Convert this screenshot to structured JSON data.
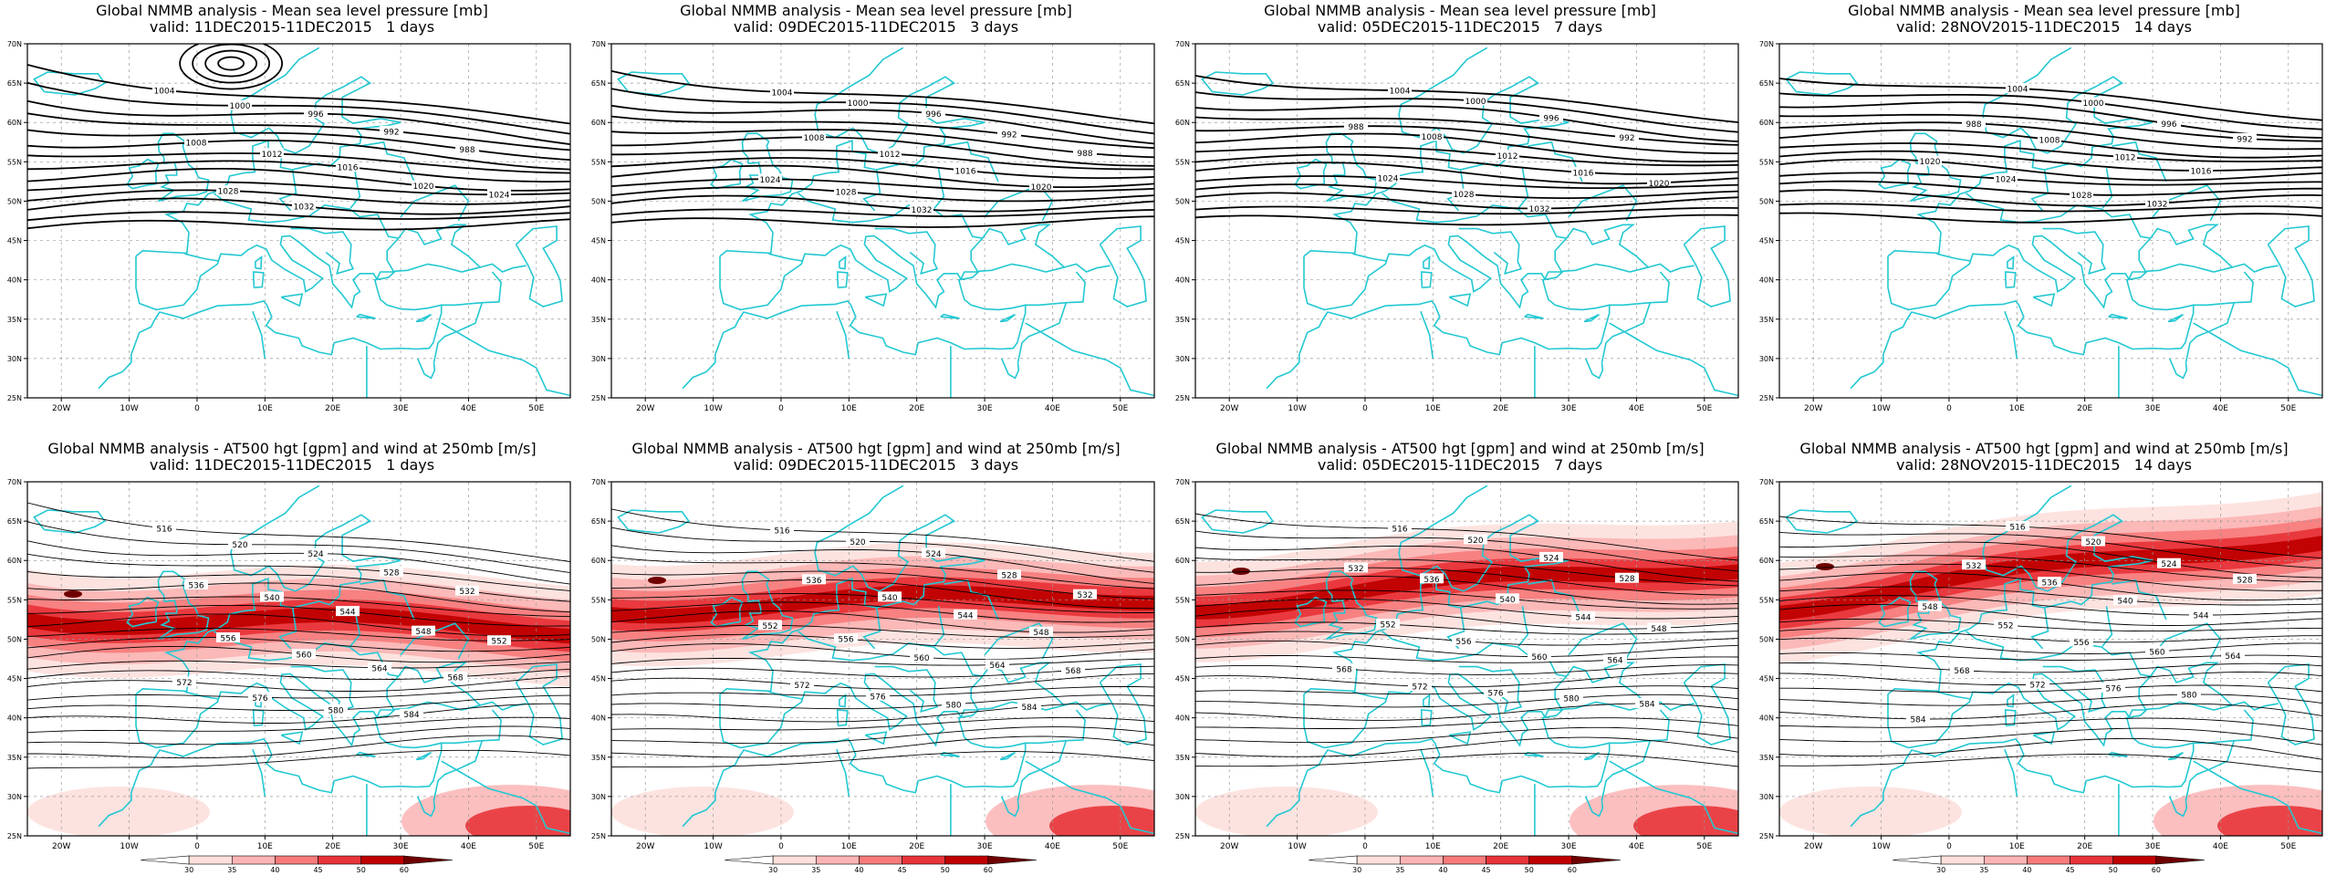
{
  "panels": [
    {
      "title": "Global NMMB analysis - Mean sea level pressure [mb]",
      "valid": "valid: 11DEC2015-11DEC2015   1 days",
      "type": "mslp",
      "variant": 0
    },
    {
      "title": "Global NMMB analysis - Mean sea level pressure [mb]",
      "valid": "valid: 09DEC2015-11DEC2015   3 days",
      "type": "mslp",
      "variant": 1
    },
    {
      "title": "Global NMMB analysis - Mean sea level pressure [mb]",
      "valid": "valid: 05DEC2015-11DEC2015   7 days",
      "type": "mslp",
      "variant": 2
    },
    {
      "title": "Global NMMB analysis - Mean sea level pressure [mb]",
      "valid": "valid: 28NOV2015-11DEC2015   14 days",
      "type": "mslp",
      "variant": 3
    },
    {
      "title": "Global NMMB analysis - AT500 hgt [gpm] and wind at 250mb [m/s]",
      "valid": "valid: 11DEC2015-11DEC2015   1 days",
      "type": "z500",
      "variant": 0
    },
    {
      "title": "Global NMMB analysis - AT500 hgt [gpm] and wind at 250mb [m/s]",
      "valid": "valid: 09DEC2015-11DEC2015   3 days",
      "type": "z500",
      "variant": 1
    },
    {
      "title": "Global NMMB analysis - AT500 hgt [gpm] and wind at 250mb [m/s]",
      "valid": "valid: 05DEC2015-11DEC2015   7 days",
      "type": "z500",
      "variant": 2
    },
    {
      "title": "Global NMMB analysis - AT500 hgt [gpm] and wind at 250mb [m/s]",
      "valid": "valid: 28NOV2015-11DEC2015   14 days",
      "type": "z500",
      "variant": 3
    }
  ],
  "map": {
    "lon_range": [
      -25,
      55
    ],
    "lat_range": [
      25,
      70
    ],
    "lon_ticks": [
      "20W",
      "10W",
      "0",
      "10E",
      "20E",
      "30E",
      "40E",
      "50E"
    ],
    "lat_ticks": [
      "25N",
      "30N",
      "35N",
      "40N",
      "45N",
      "50N",
      "55N",
      "60N",
      "65N",
      "70N"
    ],
    "coast_color": "#22c8d2",
    "contour_color": "#000000"
  },
  "mslp_labels": [
    "1004",
    "1000",
    "996",
    "992",
    "988",
    "1008",
    "1012",
    "1016",
    "1020",
    "1024",
    "1028",
    "1032"
  ],
  "z500_labels": [
    "516",
    "520",
    "524",
    "528",
    "532",
    "536",
    "540",
    "544",
    "548",
    "552",
    "556",
    "560",
    "564",
    "568",
    "572",
    "576",
    "580",
    "584"
  ],
  "colorbar": {
    "ticks": [
      "30",
      "35",
      "40",
      "45",
      "50",
      "60"
    ],
    "colors": [
      "#ffffff",
      "#fde0dd",
      "#fbb4b4",
      "#f77b7b",
      "#e8353a",
      "#c00000",
      "#700000"
    ]
  }
}
